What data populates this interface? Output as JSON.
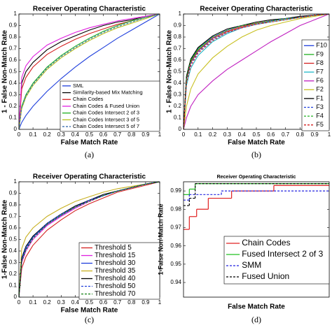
{
  "chart_data": [
    {
      "type": "line",
      "title": "Receiver Operating Characteristic",
      "x_label": "False Match Rate",
      "y_label": "1 - False Non-Match Rate",
      "caption": "(a)",
      "x": [
        0,
        0.02,
        0.05,
        0.1,
        0.2,
        0.3,
        0.4,
        0.5,
        0.6,
        0.7,
        0.8,
        0.9,
        1
      ],
      "xlim": [
        0,
        1
      ],
      "ylim": [
        0,
        1
      ],
      "xticks": [
        0,
        0.1,
        0.2,
        0.3,
        0.4,
        0.5,
        0.6,
        0.7,
        0.8,
        0.9,
        1
      ],
      "yticks": [
        0,
        0.1,
        0.2,
        0.3,
        0.4,
        0.5,
        0.6,
        0.7,
        0.8,
        0.9,
        1
      ],
      "legend": "lower right",
      "series": [
        {
          "name": "SML",
          "color": "#1f3fdc",
          "values": [
            0,
            0.06,
            0.12,
            0.2,
            0.33,
            0.44,
            0.54,
            0.63,
            0.71,
            0.79,
            0.86,
            0.93,
            1
          ]
        },
        {
          "name": "Similarity-based Mix Matching",
          "color": "#000000",
          "values": [
            0,
            0.4,
            0.5,
            0.58,
            0.69,
            0.76,
            0.81,
            0.86,
            0.9,
            0.93,
            0.95,
            0.98,
            1
          ]
        },
        {
          "name": "Chain Codes",
          "color": "#d42020",
          "values": [
            0,
            0.35,
            0.45,
            0.54,
            0.65,
            0.72,
            0.78,
            0.83,
            0.87,
            0.91,
            0.94,
            0.97,
            1
          ]
        },
        {
          "name": "Chain Codes & Fused Union",
          "color": "#e020e0",
          "values": [
            0,
            0.45,
            0.55,
            0.63,
            0.73,
            0.79,
            0.84,
            0.88,
            0.91,
            0.94,
            0.96,
            0.98,
            1
          ]
        },
        {
          "name": "Chain Codes Intersect 2 of 3",
          "color": "#20b020",
          "values": [
            0,
            0.2,
            0.3,
            0.4,
            0.54,
            0.64,
            0.72,
            0.79,
            0.85,
            0.9,
            0.94,
            0.97,
            1
          ]
        },
        {
          "name": "Chain Codes Intersect 3 of 5",
          "color": "#b8c020",
          "values": [
            0,
            0.18,
            0.28,
            0.38,
            0.52,
            0.62,
            0.7,
            0.77,
            0.83,
            0.88,
            0.92,
            0.96,
            1
          ]
        },
        {
          "name": "Chain Codes Intersect 5 of 7",
          "color": "#3a6fb0",
          "style": "dashed",
          "values": [
            0,
            0.19,
            0.29,
            0.39,
            0.53,
            0.63,
            0.71,
            0.78,
            0.84,
            0.89,
            0.93,
            0.97,
            1
          ]
        }
      ]
    },
    {
      "type": "line",
      "title": "Receiver Operating Characteristic",
      "x_label": "False Match Rate",
      "y_label": "1 - False Non-Match Rate",
      "caption": "(b)",
      "x": [
        0,
        0.02,
        0.05,
        0.1,
        0.2,
        0.3,
        0.4,
        0.5,
        0.6,
        0.7,
        0.8,
        0.9,
        1
      ],
      "xlim": [
        0,
        1
      ],
      "ylim": [
        0,
        1
      ],
      "xticks": [
        0,
        0.1,
        0.2,
        0.3,
        0.4,
        0.5,
        0.6,
        0.7,
        0.8,
        0.9,
        1
      ],
      "yticks": [
        0,
        0.1,
        0.2,
        0.3,
        0.4,
        0.5,
        0.6,
        0.7,
        0.8,
        0.9,
        1
      ],
      "legend": "right",
      "series": [
        {
          "name": "F10",
          "color": "#1f3fdc",
          "values": [
            0,
            0.45,
            0.6,
            0.7,
            0.8,
            0.86,
            0.9,
            0.92,
            0.94,
            0.96,
            0.97,
            0.99,
            1
          ]
        },
        {
          "name": "F9",
          "color": "#20b020",
          "values": [
            0,
            0.44,
            0.59,
            0.69,
            0.79,
            0.85,
            0.89,
            0.92,
            0.94,
            0.96,
            0.97,
            0.99,
            1
          ]
        },
        {
          "name": "F8",
          "color": "#d42020",
          "values": [
            0,
            0.43,
            0.58,
            0.68,
            0.79,
            0.85,
            0.89,
            0.92,
            0.94,
            0.96,
            0.97,
            0.99,
            1
          ]
        },
        {
          "name": "F7",
          "color": "#20b8c8",
          "values": [
            0,
            0.38,
            0.53,
            0.64,
            0.76,
            0.83,
            0.88,
            0.91,
            0.93,
            0.95,
            0.97,
            0.99,
            1
          ]
        },
        {
          "name": "F6",
          "color": "#c020c0",
          "values": [
            0,
            0.1,
            0.2,
            0.3,
            0.42,
            0.52,
            0.6,
            0.68,
            0.76,
            0.83,
            0.9,
            0.95,
            1
          ]
        },
        {
          "name": "F2",
          "color": "#c8c020",
          "values": [
            0,
            0.2,
            0.35,
            0.48,
            0.62,
            0.72,
            0.8,
            0.86,
            0.9,
            0.93,
            0.96,
            0.98,
            1
          ]
        },
        {
          "name": "F1",
          "color": "#000000",
          "values": [
            0,
            0.46,
            0.61,
            0.71,
            0.81,
            0.87,
            0.9,
            0.93,
            0.95,
            0.96,
            0.98,
            0.99,
            1
          ]
        },
        {
          "name": "F3",
          "color": "#1f3fdc",
          "style": "dashed",
          "values": [
            0,
            0.42,
            0.57,
            0.67,
            0.78,
            0.84,
            0.88,
            0.91,
            0.94,
            0.96,
            0.97,
            0.99,
            1
          ]
        },
        {
          "name": "F4",
          "color": "#20b020",
          "style": "dashed",
          "values": [
            0,
            0.44,
            0.6,
            0.7,
            0.8,
            0.86,
            0.9,
            0.92,
            0.94,
            0.96,
            0.97,
            0.99,
            1
          ]
        },
        {
          "name": "F5",
          "color": "#d42020",
          "style": "dashed",
          "values": [
            0,
            0.4,
            0.55,
            0.66,
            0.77,
            0.84,
            0.88,
            0.91,
            0.93,
            0.95,
            0.97,
            0.99,
            1
          ]
        }
      ]
    },
    {
      "type": "line",
      "title": "Receiver Operating Characteristic",
      "x_label": "False Match Rate",
      "y_label": "1-False Non-Match Rate",
      "caption": "(c)",
      "x": [
        0,
        0.02,
        0.05,
        0.1,
        0.2,
        0.3,
        0.4,
        0.5,
        0.6,
        0.7,
        0.8,
        0.9,
        1
      ],
      "xlim": [
        0,
        1
      ],
      "ylim": [
        0,
        1
      ],
      "xticks": [
        0,
        0.1,
        0.2,
        0.3,
        0.4,
        0.5,
        0.6,
        0.7,
        0.8,
        0.9,
        1
      ],
      "yticks": [
        0,
        0.1,
        0.2,
        0.3,
        0.4,
        0.5,
        0.6,
        0.7,
        0.8,
        0.9,
        1
      ],
      "legend": "lower right",
      "series": [
        {
          "name": "Threshold 5",
          "color": "#d42020",
          "values": [
            0,
            0.25,
            0.35,
            0.45,
            0.58,
            0.67,
            0.75,
            0.81,
            0.86,
            0.91,
            0.94,
            0.97,
            1
          ]
        },
        {
          "name": "Threshold 15",
          "color": "#e020e0",
          "values": [
            0,
            0.3,
            0.4,
            0.5,
            0.62,
            0.7,
            0.77,
            0.83,
            0.88,
            0.92,
            0.95,
            0.98,
            1
          ]
        },
        {
          "name": "Threshold 30",
          "color": "#1f3fdc",
          "values": [
            0,
            0.32,
            0.42,
            0.52,
            0.63,
            0.71,
            0.78,
            0.84,
            0.88,
            0.92,
            0.95,
            0.98,
            1
          ]
        },
        {
          "name": "Threshold 35",
          "color": "#c8b020",
          "values": [
            0,
            0.42,
            0.52,
            0.6,
            0.7,
            0.77,
            0.83,
            0.87,
            0.91,
            0.94,
            0.96,
            0.98,
            1
          ]
        },
        {
          "name": "Threshold 40",
          "color": "#000000",
          "values": [
            0,
            0.34,
            0.44,
            0.53,
            0.64,
            0.72,
            0.79,
            0.84,
            0.89,
            0.92,
            0.95,
            0.98,
            1
          ]
        },
        {
          "name": "Threshold 50",
          "color": "#1f3fdc",
          "style": "dashed",
          "values": [
            0,
            0.33,
            0.43,
            0.52,
            0.64,
            0.72,
            0.78,
            0.84,
            0.88,
            0.92,
            0.95,
            0.98,
            1
          ]
        },
        {
          "name": "Threshold 70",
          "color": "#108010",
          "style": "dashed",
          "values": [
            0,
            0.31,
            0.41,
            0.51,
            0.63,
            0.71,
            0.78,
            0.83,
            0.88,
            0.92,
            0.95,
            0.98,
            1
          ]
        }
      ]
    },
    {
      "type": "step",
      "title": "Receiver Operating Characteristic",
      "x_label": "False Match Rate",
      "y_label": "1-False Non-Match Rate",
      "caption": "(d)",
      "xlim": [
        0,
        1
      ],
      "ylim": [
        0.932,
        0.995
      ],
      "yticks": [
        0.94,
        0.95,
        0.96,
        0.97,
        0.98,
        0.99
      ],
      "legend": "lower center",
      "series": [
        {
          "name": "Chain Codes",
          "color": "#e02020",
          "x": [
            0,
            0.04,
            0.09,
            0.17,
            0.33,
            0.62
          ],
          "values": [
            0.969,
            0.976,
            0.98,
            0.986,
            0.99,
            0.993
          ]
        },
        {
          "name": "Fused Intersect 2 of 3",
          "color": "#20c020",
          "x": [
            0,
            0.04,
            0.08
          ],
          "values": [
            0.988,
            0.991,
            0.994
          ]
        },
        {
          "name": "SMM",
          "color": "#2020e0",
          "style": "dashed",
          "x": [
            0,
            0.04,
            0.26
          ],
          "values": [
            0.985,
            0.988,
            0.99
          ]
        },
        {
          "name": "Fused Union",
          "color": "#000000",
          "style": "dashed",
          "x": [
            0,
            0.04,
            0.08
          ],
          "values": [
            0.982,
            0.986,
            0.994
          ]
        }
      ]
    }
  ]
}
